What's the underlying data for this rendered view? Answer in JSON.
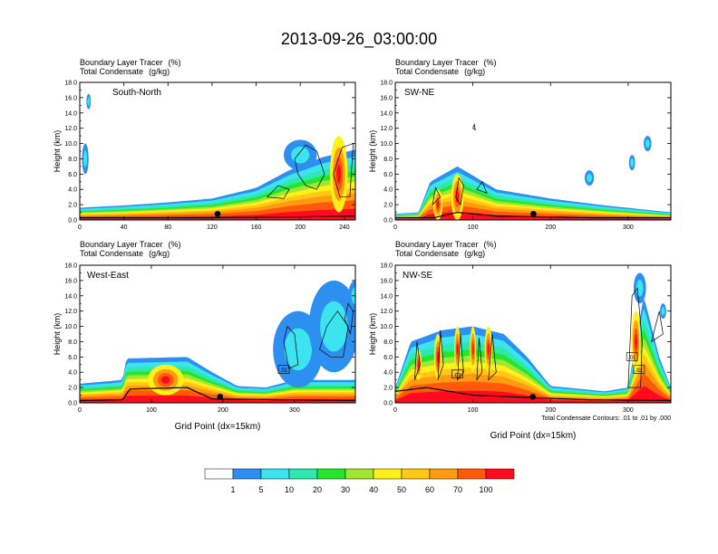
{
  "title": "2013-09-26_03:00:00",
  "panel_header": {
    "line1": "Boundary Layer Tracer",
    "unit1": "(%)",
    "line2": "Total Condensate",
    "unit2": "(g/kg)"
  },
  "ylabel": "Height (km)",
  "xlabel": "Grid Point (dx=15km)",
  "contour_note": "Total Condensate Contours: .01 to .01 by .000",
  "contour_label": ".01",
  "colorbar": {
    "colors": [
      "#ffffff",
      "#2d8ff0",
      "#3ce4f0",
      "#2ee8b0",
      "#25e62a",
      "#a0e632",
      "#fff01a",
      "#ffc814",
      "#ff9b10",
      "#ff5a0a",
      "#ff0a1e"
    ],
    "labels": [
      "1",
      "5",
      "10",
      "20",
      "30",
      "40",
      "50",
      "60",
      "70",
      "100"
    ]
  },
  "chart_data": [
    {
      "type": "heatmap",
      "label": "South-North",
      "xlim": [
        0,
        250
      ],
      "ylim": [
        0,
        18
      ],
      "xticks": [
        0,
        40,
        80,
        120,
        160,
        200,
        240
      ],
      "yticks": [
        "0.0",
        "2.0",
        "4.0",
        "6.0",
        "8.0",
        "10.0",
        "12.0",
        "14.0",
        "16.0",
        "18.0"
      ],
      "profile": [
        [
          0,
          1.6
        ],
        [
          40,
          1.9
        ],
        [
          80,
          2.3
        ],
        [
          120,
          2.8
        ],
        [
          160,
          4.2
        ],
        [
          190,
          6.5
        ],
        [
          220,
          8.2
        ],
        [
          250,
          9.2
        ]
      ],
      "terrain": [
        [
          0,
          0.3
        ],
        [
          120,
          0.3
        ],
        [
          200,
          0.4
        ],
        [
          250,
          0.5
        ]
      ],
      "blobs": [
        [
          5,
          8,
          3,
          2
        ],
        [
          8,
          15.5,
          2,
          1
        ],
        [
          200,
          8.5,
          15,
          2
        ]
      ],
      "cells": [
        [
          235,
          6,
          8,
          5
        ]
      ],
      "marker_x": 125,
      "contours": [
        [
          [
            195,
            8
          ],
          [
            205,
            9.8
          ],
          [
            215,
            9
          ],
          [
            222,
            6
          ],
          [
            215,
            4
          ],
          [
            205,
            4.5
          ],
          [
            198,
            6
          ]
        ],
        [
          [
            230,
            6
          ],
          [
            238,
            9.5
          ],
          [
            248,
            10
          ],
          [
            245,
            3
          ],
          [
            236,
            3
          ]
        ],
        [
          [
            170,
            3
          ],
          [
            180,
            4.5
          ],
          [
            190,
            4
          ],
          [
            185,
            2.8
          ]
        ]
      ],
      "boxed_labels": []
    },
    {
      "type": "heatmap",
      "label": "SW-NE",
      "xlim": [
        0,
        355
      ],
      "ylim": [
        0,
        18
      ],
      "xticks": [
        0,
        100,
        200,
        300
      ],
      "yticks": [
        "0.0",
        "2.0",
        "4.0",
        "6.0",
        "8.0",
        "10.0",
        "12.0",
        "14.0",
        "16.0",
        "18.0"
      ],
      "profile": [
        [
          0,
          0.8
        ],
        [
          30,
          1
        ],
        [
          45,
          5
        ],
        [
          80,
          7
        ],
        [
          130,
          4
        ],
        [
          200,
          2.8
        ],
        [
          270,
          1.9
        ],
        [
          355,
          1
        ]
      ],
      "terrain": [
        [
          0,
          0.3
        ],
        [
          50,
          0.3
        ],
        [
          80,
          1
        ],
        [
          130,
          0.5
        ],
        [
          250,
          0.3
        ],
        [
          355,
          0.3
        ]
      ],
      "blobs": [
        [
          250,
          5.5,
          6,
          1
        ],
        [
          305,
          7.5,
          4,
          1
        ],
        [
          325,
          10,
          5,
          1
        ]
      ],
      "cells": [
        [
          80,
          3,
          8,
          3
        ],
        [
          55,
          2,
          6,
          2
        ]
      ],
      "marker_x": 178,
      "contours": [
        [
          [
            78,
            3
          ],
          [
            82,
            5.5
          ],
          [
            88,
            4.5
          ],
          [
            84,
            2
          ]
        ],
        [
          [
            48,
            2
          ],
          [
            52,
            4.2
          ],
          [
            58,
            3
          ]
        ],
        [
          [
            105,
            4
          ],
          [
            112,
            5
          ],
          [
            118,
            3.5
          ]
        ],
        [
          [
            100,
            12
          ],
          [
            102,
            12.5
          ],
          [
            103,
            11.8
          ]
        ]
      ],
      "boxed_labels": []
    },
    {
      "type": "heatmap",
      "label": "West-East",
      "xlim": [
        0,
        385
      ],
      "ylim": [
        0,
        18
      ],
      "xticks": [
        0,
        100,
        200,
        300
      ],
      "yticks": [
        "0.0",
        "2.0",
        "4.0",
        "6.0",
        "8.0",
        "10.0",
        "12.0",
        "14.0",
        "16.0",
        "18.0"
      ],
      "profile": [
        [
          0,
          2.5
        ],
        [
          60,
          3
        ],
        [
          65,
          5.8
        ],
        [
          150,
          6
        ],
        [
          185,
          4
        ],
        [
          220,
          2.2
        ],
        [
          260,
          2
        ],
        [
          300,
          3
        ],
        [
          385,
          3
        ]
      ],
      "terrain": [
        [
          0,
          0.3
        ],
        [
          60,
          0.4
        ],
        [
          70,
          1.8
        ],
        [
          150,
          2
        ],
        [
          185,
          0.5
        ],
        [
          385,
          0.3
        ]
      ],
      "blobs": [
        [
          305,
          7,
          35,
          5
        ],
        [
          355,
          10,
          35,
          6
        ],
        [
          385,
          14,
          10,
          2
        ]
      ],
      "cells": [
        [
          120,
          3,
          25,
          2
        ]
      ],
      "marker_x": 196,
      "contours": [
        [
          [
            285,
            8
          ],
          [
            290,
            10
          ],
          [
            300,
            9
          ],
          [
            305,
            5
          ],
          [
            292,
            4.5
          ]
        ],
        [
          [
            335,
            7
          ],
          [
            345,
            10
          ],
          [
            360,
            12
          ],
          [
            375,
            10
          ],
          [
            368,
            6
          ],
          [
            350,
            6
          ]
        ],
        [
          [
            370,
            11
          ],
          [
            375,
            13
          ],
          [
            382,
            12
          ],
          [
            378,
            9
          ]
        ]
      ],
      "boxed_labels": [
        [
          285,
          4.3
        ]
      ]
    },
    {
      "type": "heatmap",
      "label": "NW-SE",
      "xlim": [
        0,
        355
      ],
      "ylim": [
        0,
        18
      ],
      "xticks": [
        0,
        100,
        200,
        300
      ],
      "yticks": [
        "0.0",
        "2.0",
        "4.0",
        "6.0",
        "8.0",
        "10.0",
        "12.0",
        "14.0",
        "16.0",
        "18.0"
      ],
      "profile": [
        [
          0,
          2
        ],
        [
          20,
          8
        ],
        [
          60,
          9.5
        ],
        [
          100,
          10
        ],
        [
          140,
          9
        ],
        [
          170,
          6
        ],
        [
          200,
          2.2
        ],
        [
          270,
          1.5
        ],
        [
          300,
          2
        ],
        [
          320,
          14
        ],
        [
          340,
          6
        ],
        [
          355,
          2
        ]
      ],
      "terrain": [
        [
          0,
          1.5
        ],
        [
          40,
          2
        ],
        [
          100,
          1
        ],
        [
          170,
          0.7
        ],
        [
          250,
          0.4
        ],
        [
          355,
          0.3
        ]
      ],
      "blobs": [
        [
          315,
          15,
          8,
          2
        ],
        [
          345,
          12,
          4,
          1
        ]
      ],
      "cells": [
        [
          55,
          6,
          5,
          3
        ],
        [
          80,
          7,
          4,
          3
        ],
        [
          100,
          7,
          4,
          3
        ],
        [
          120,
          7,
          5,
          3
        ],
        [
          30,
          5,
          4,
          2
        ],
        [
          310,
          8,
          6,
          4
        ]
      ],
      "marker_x": 177,
      "contours": [
        [
          [
            25,
            3
          ],
          [
            28,
            8
          ],
          [
            32,
            5
          ]
        ],
        [
          [
            55,
            3
          ],
          [
            58,
            9.5
          ],
          [
            62,
            5
          ]
        ],
        [
          [
            80,
            3
          ],
          [
            84,
            9
          ],
          [
            88,
            4
          ]
        ],
        [
          [
            105,
            3
          ],
          [
            108,
            8.5
          ],
          [
            112,
            4
          ]
        ],
        [
          [
            120,
            3
          ],
          [
            125,
            9
          ],
          [
            130,
            4
          ]
        ],
        [
          [
            300,
            2
          ],
          [
            305,
            14
          ],
          [
            312,
            15
          ],
          [
            318,
            8
          ],
          [
            316,
            2
          ]
        ],
        [
          [
            330,
            8
          ],
          [
            340,
            12
          ],
          [
            345,
            9
          ]
        ]
      ],
      "boxed_labels": [
        [
          80,
          3.7
        ],
        [
          305,
          6
        ],
        [
          314,
          4.3
        ]
      ]
    }
  ]
}
